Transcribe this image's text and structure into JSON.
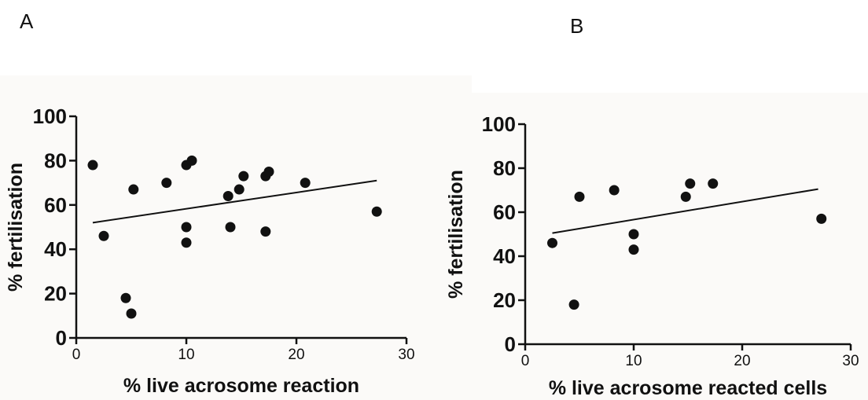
{
  "panels": {
    "a_label": "A",
    "b_label": "B"
  },
  "chart_data": [
    {
      "type": "scatter",
      "panel": "A",
      "xlabel": "% live acrosome reaction",
      "ylabel": "% fertilisation",
      "xlim": [
        0,
        30
      ],
      "ylim": [
        0,
        100
      ],
      "xticks": [
        0,
        10,
        20,
        30
      ],
      "yticks": [
        0,
        20,
        40,
        60,
        80,
        100
      ],
      "grid": false,
      "points": [
        {
          "x": 1.5,
          "y": 78
        },
        {
          "x": 2.5,
          "y": 46
        },
        {
          "x": 4.5,
          "y": 18
        },
        {
          "x": 5.0,
          "y": 11
        },
        {
          "x": 5.2,
          "y": 67
        },
        {
          "x": 8.2,
          "y": 70
        },
        {
          "x": 10.0,
          "y": 78
        },
        {
          "x": 10.5,
          "y": 80
        },
        {
          "x": 10.0,
          "y": 50
        },
        {
          "x": 10.0,
          "y": 43
        },
        {
          "x": 13.8,
          "y": 64
        },
        {
          "x": 14.0,
          "y": 50
        },
        {
          "x": 14.8,
          "y": 67
        },
        {
          "x": 15.2,
          "y": 73
        },
        {
          "x": 17.2,
          "y": 73
        },
        {
          "x": 17.5,
          "y": 75
        },
        {
          "x": 17.2,
          "y": 48
        },
        {
          "x": 20.8,
          "y": 70
        },
        {
          "x": 27.3,
          "y": 57
        }
      ],
      "trendline": {
        "x": [
          1.5,
          27.3
        ],
        "y": [
          52,
          71
        ]
      }
    },
    {
      "type": "scatter",
      "panel": "B",
      "xlabel": "% live acrosome reacted cells",
      "ylabel": "% fertilisation",
      "xlim": [
        0,
        30
      ],
      "ylim": [
        0,
        100
      ],
      "xticks": [
        0,
        10,
        20,
        30
      ],
      "yticks": [
        0,
        20,
        40,
        60,
        80,
        100
      ],
      "grid": false,
      "points": [
        {
          "x": 2.5,
          "y": 46
        },
        {
          "x": 4.5,
          "y": 18
        },
        {
          "x": 5.0,
          "y": 67
        },
        {
          "x": 8.2,
          "y": 70
        },
        {
          "x": 10.0,
          "y": 50
        },
        {
          "x": 10.0,
          "y": 43
        },
        {
          "x": 14.8,
          "y": 67
        },
        {
          "x": 15.2,
          "y": 73
        },
        {
          "x": 17.3,
          "y": 73
        },
        {
          "x": 27.3,
          "y": 57
        }
      ],
      "trendline": {
        "x": [
          2.5,
          27.0
        ],
        "y": [
          50.5,
          70.5
        ]
      }
    }
  ]
}
